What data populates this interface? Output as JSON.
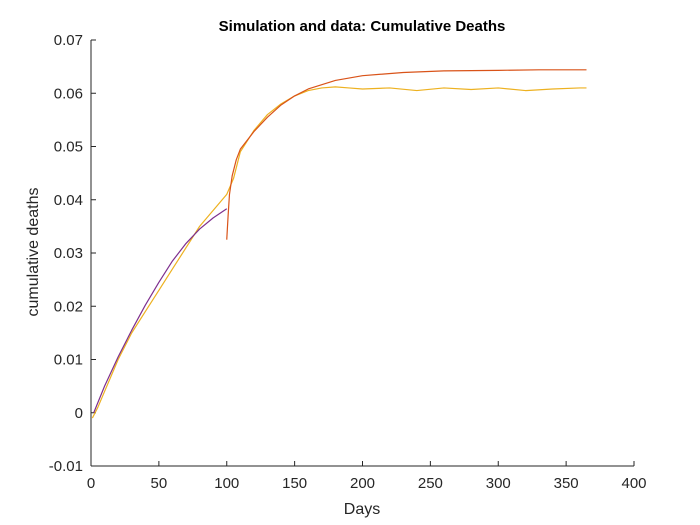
{
  "chart_data": {
    "type": "line",
    "title": "Simulation and data: Cumulative Deaths",
    "xlabel": "Days",
    "ylabel": "cumulative deaths",
    "xlim": [
      0,
      400
    ],
    "ylim": [
      -0.01,
      0.07
    ],
    "xticks": [
      0,
      50,
      100,
      150,
      200,
      250,
      300,
      350,
      400
    ],
    "yticks": [
      -0.01,
      0,
      0.01,
      0.02,
      0.03,
      0.04,
      0.05,
      0.06,
      0.07
    ],
    "xtick_labels": [
      "0",
      "50",
      "100",
      "150",
      "200",
      "250",
      "300",
      "350",
      "400"
    ],
    "ytick_labels": [
      "-0.01",
      "0",
      "0.01",
      "0.02",
      "0.03",
      "0.04",
      "0.05",
      "0.06",
      "0.07"
    ],
    "grid": false,
    "legend": "none",
    "series": [
      {
        "color": "#EDB120",
        "x": [
          1,
          5,
          10,
          20,
          30,
          40,
          50,
          60,
          70,
          80,
          90,
          100,
          105,
          110,
          115,
          120,
          130,
          140,
          150,
          160,
          170,
          180,
          190,
          200,
          220,
          240,
          260,
          280,
          300,
          320,
          340,
          360,
          365
        ],
        "y": [
          -0.001,
          0.001,
          0.004,
          0.01,
          0.015,
          0.019,
          0.023,
          0.027,
          0.031,
          0.035,
          0.038,
          0.041,
          0.044,
          0.049,
          0.051,
          0.053,
          0.056,
          0.058,
          0.0595,
          0.0605,
          0.061,
          0.0612,
          0.061,
          0.0608,
          0.061,
          0.0605,
          0.061,
          0.0607,
          0.061,
          0.0605,
          0.0608,
          0.061,
          0.061
        ]
      },
      {
        "color": "#7E2F8E",
        "x": [
          2,
          10,
          20,
          30,
          40,
          50,
          60,
          70,
          80,
          90,
          100
        ],
        "y": [
          0,
          0.005,
          0.0105,
          0.0155,
          0.0202,
          0.0245,
          0.0285,
          0.0318,
          0.0345,
          0.0366,
          0.0383
        ]
      },
      {
        "color": "#D95319",
        "x": [
          100,
          101,
          102,
          104,
          107,
          110,
          120,
          130,
          140,
          150,
          160,
          180,
          200,
          230,
          260,
          300,
          330,
          365
        ],
        "y": [
          0.0325,
          0.037,
          0.041,
          0.0445,
          0.0475,
          0.0495,
          0.0528,
          0.0555,
          0.0578,
          0.0595,
          0.0608,
          0.0624,
          0.0633,
          0.0639,
          0.0642,
          0.0643,
          0.0644,
          0.0644
        ]
      }
    ]
  }
}
